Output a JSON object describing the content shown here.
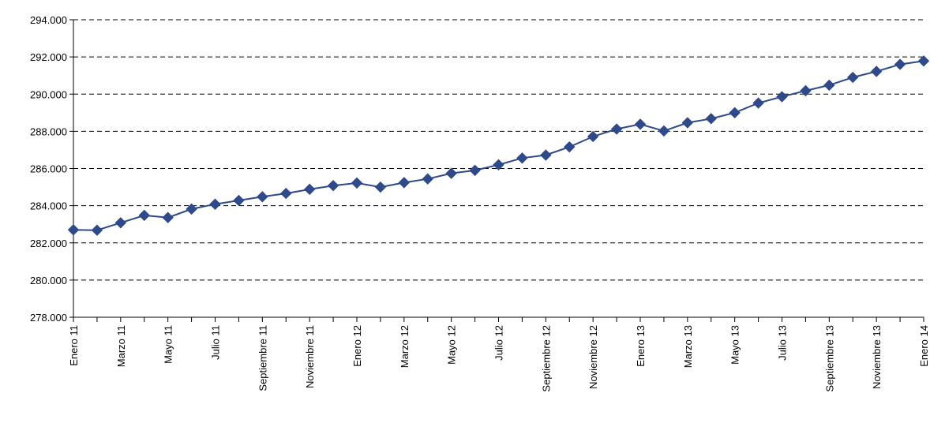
{
  "chart_data": {
    "type": "line",
    "title": "",
    "xlabel": "",
    "ylabel": "",
    "ylim": [
      278000,
      294000
    ],
    "y_ticks": [
      278000,
      280000,
      282000,
      284000,
      286000,
      288000,
      290000,
      292000,
      294000
    ],
    "y_tick_labels": [
      "278.000",
      "280.000",
      "282.000",
      "284.000",
      "286.000",
      "288.000",
      "290.000",
      "292.000",
      "294.000"
    ],
    "grid": "horizontal dashed",
    "colors": {
      "series": "#2E4A8B",
      "grid": "#000000",
      "axis": "#000000"
    },
    "categories": [
      "Enero 11",
      "Febrero 11",
      "Marzo 11",
      "Abril 11",
      "Mayo 11",
      "Junio 11",
      "Julio 11",
      "Agosto 11",
      "Septiembre 11",
      "Octubre 11",
      "Noviembre 11",
      "Diciembre 11",
      "Enero 12",
      "Febrero 12",
      "Marzo 12",
      "Abril 12",
      "Mayo 12",
      "Junio 12",
      "Julio 12",
      "Agosto 12",
      "Septiembre 12",
      "Octubre 12",
      "Noviembre 12",
      "Diciembre 12",
      "Enero 13",
      "Febrero 13",
      "Marzo 13",
      "Abril 13",
      "Mayo 13",
      "Junio 13",
      "Julio 13",
      "Agosto 13",
      "Septiembre 13",
      "Octubre 13",
      "Noviembre 13",
      "Diciembre 13",
      "Enero 14"
    ],
    "x_tick_labels": [
      "Enero 11",
      "",
      "Marzo 11",
      "",
      "Mayo 11",
      "",
      "Julio 11",
      "",
      "Septiembre 11",
      "",
      "Noviembre 11",
      "",
      "Enero 12",
      "",
      "Marzo 12",
      "",
      "Mayo 12",
      "",
      "Julio 12",
      "",
      "Septiembre 12",
      "",
      "Noviembre 12",
      "",
      "Enero 13",
      "",
      "Marzo 13",
      "",
      "Mayo 13",
      "",
      "Julio 13",
      "",
      "Septiembre 13",
      "",
      "Noviembre 13",
      "",
      "Enero 14"
    ],
    "series": [
      {
        "values": [
          282700,
          282680,
          283080,
          283480,
          283360,
          283820,
          284080,
          284280,
          284480,
          284660,
          284880,
          285080,
          285220,
          285000,
          285240,
          285440,
          285740,
          285900,
          286200,
          286560,
          286720,
          287160,
          287720,
          288120,
          288380,
          288020,
          288460,
          288680,
          289000,
          289520,
          289860,
          290180,
          290480,
          290900,
          291220,
          291600,
          291780
        ]
      }
    ]
  }
}
